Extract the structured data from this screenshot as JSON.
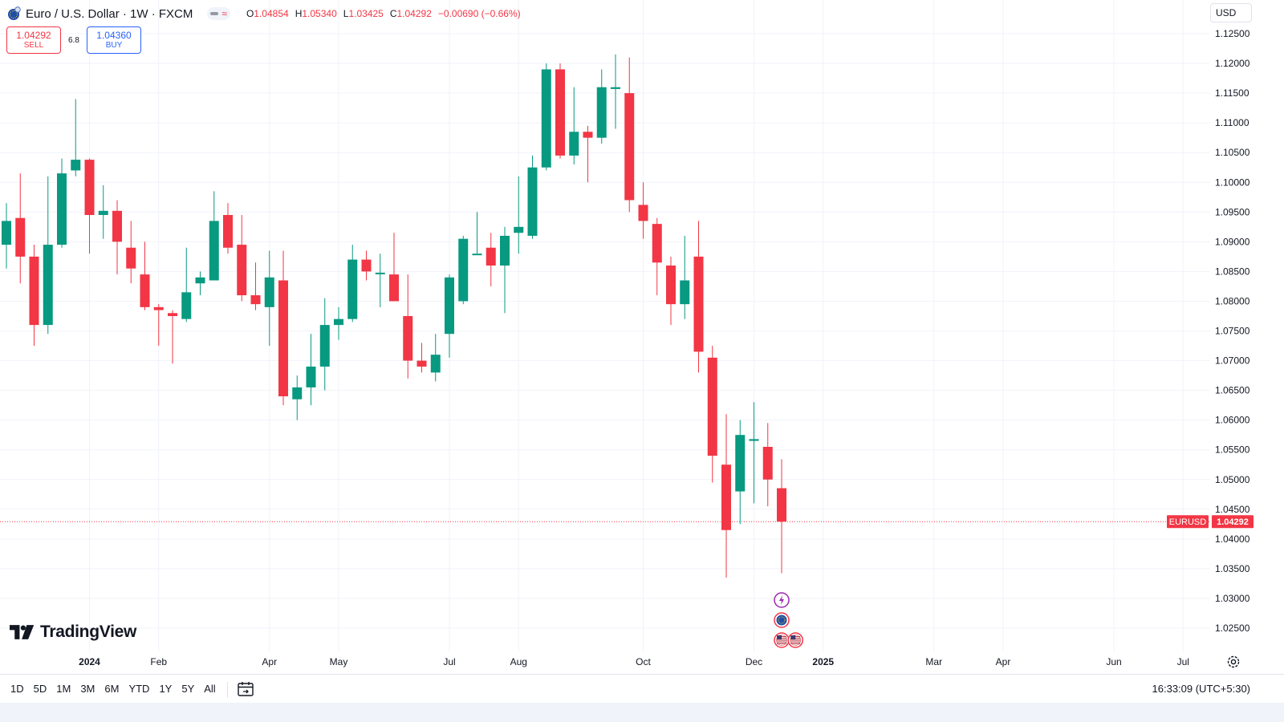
{
  "header": {
    "symbol_title": "Euro / U.S. Dollar · 1W · FXCM",
    "ohlc": {
      "o_label": "O",
      "o": "1.04854",
      "h_label": "H",
      "h": "1.05340",
      "l_label": "L",
      "l": "1.03425",
      "c_label": "C",
      "c": "1.04292",
      "change": "−0.00690 (−0.66%)"
    },
    "pill_symbol": "≈"
  },
  "trade": {
    "sell_price": "1.04292",
    "sell_label": "SELL",
    "buy_price": "1.04360",
    "buy_label": "BUY",
    "spread": "6.8"
  },
  "currency": "USD",
  "logo_text": "TradingView",
  "timeframes": [
    "1D",
    "5D",
    "1M",
    "3M",
    "6M",
    "YTD",
    "1Y",
    "5Y",
    "All"
  ],
  "clock": "16:33:09 (UTC+5:30)",
  "colors": {
    "up": "#089981",
    "down": "#f23645",
    "grid": "#f0f3fa",
    "text": "#131722",
    "price_line": "#f23645"
  },
  "chart_data": {
    "type": "candlestick",
    "symbol_label": "EURUSD",
    "last_price": "1.04292",
    "y_range": [
      1.0175,
      1.1275
    ],
    "y_ticks": [
      "1.02500",
      "1.03000",
      "1.03500",
      "1.04000",
      "1.04500",
      "1.05000",
      "1.05500",
      "1.06000",
      "1.06500",
      "1.07000",
      "1.07500",
      "1.08000",
      "1.08500",
      "1.09000",
      "1.09500",
      "1.10000",
      "1.10500",
      "1.11000",
      "1.11500",
      "1.12000",
      "1.12500"
    ],
    "x_labels": [
      {
        "label": "2024",
        "week": 6,
        "bold": true
      },
      {
        "label": "Feb",
        "week": 11
      },
      {
        "label": "Apr",
        "week": 19
      },
      {
        "label": "May",
        "week": 24
      },
      {
        "label": "Jul",
        "week": 32
      },
      {
        "label": "Aug",
        "week": 37
      },
      {
        "label": "Oct",
        "week": 46
      },
      {
        "label": "Dec",
        "week": 54
      },
      {
        "label": "2025",
        "week": 59,
        "bold": true
      },
      {
        "label": "Mar",
        "week": 67
      },
      {
        "label": "Apr",
        "week": 72
      },
      {
        "label": "Jun",
        "week": 80
      },
      {
        "label": "Jul",
        "week": 85
      }
    ],
    "candles": [
      {
        "o": 1.0895,
        "h": 1.0965,
        "l": 1.0855,
        "c": 1.0935
      },
      {
        "o": 1.094,
        "h": 1.1015,
        "l": 1.083,
        "c": 1.0875
      },
      {
        "o": 1.0875,
        "h": 1.0895,
        "l": 1.0725,
        "c": 1.076
      },
      {
        "o": 1.076,
        "h": 1.101,
        "l": 1.0745,
        "c": 1.0895
      },
      {
        "o": 1.0895,
        "h": 1.104,
        "l": 1.089,
        "c": 1.1015
      },
      {
        "o": 1.102,
        "h": 1.114,
        "l": 1.101,
        "c": 1.1038
      },
      {
        "o": 1.1038,
        "h": 1.104,
        "l": 1.088,
        "c": 1.0945
      },
      {
        "o": 1.0945,
        "h": 1.0995,
        "l": 1.0905,
        "c": 1.0952
      },
      {
        "o": 1.0952,
        "h": 1.097,
        "l": 1.0845,
        "c": 1.09
      },
      {
        "o": 1.089,
        "h": 1.0935,
        "l": 1.083,
        "c": 1.0855
      },
      {
        "o": 1.0845,
        "h": 1.09,
        "l": 1.0785,
        "c": 1.079
      },
      {
        "o": 1.079,
        "h": 1.0795,
        "l": 1.0725,
        "c": 1.0785
      },
      {
        "o": 1.078,
        "h": 1.0785,
        "l": 1.0695,
        "c": 1.0775
      },
      {
        "o": 1.077,
        "h": 1.089,
        "l": 1.0765,
        "c": 1.0815
      },
      {
        "o": 1.083,
        "h": 1.085,
        "l": 1.081,
        "c": 1.084
      },
      {
        "o": 1.0835,
        "h": 1.0985,
        "l": 1.0835,
        "c": 1.0935
      },
      {
        "o": 1.0945,
        "h": 1.0965,
        "l": 1.088,
        "c": 1.089
      },
      {
        "o": 1.0895,
        "h": 1.0945,
        "l": 1.08,
        "c": 1.081
      },
      {
        "o": 1.081,
        "h": 1.0865,
        "l": 1.0785,
        "c": 1.0795
      },
      {
        "o": 1.079,
        "h": 1.0885,
        "l": 1.0725,
        "c": 1.084
      },
      {
        "o": 1.0835,
        "h": 1.0885,
        "l": 1.0625,
        "c": 1.064
      },
      {
        "o": 1.0635,
        "h": 1.0675,
        "l": 1.06,
        "c": 1.0655
      },
      {
        "o": 1.0655,
        "h": 1.0745,
        "l": 1.0625,
        "c": 1.069
      },
      {
        "o": 1.069,
        "h": 1.0805,
        "l": 1.065,
        "c": 1.076
      },
      {
        "o": 1.076,
        "h": 1.079,
        "l": 1.0735,
        "c": 1.077
      },
      {
        "o": 1.077,
        "h": 1.0895,
        "l": 1.0765,
        "c": 1.087
      },
      {
        "o": 1.087,
        "h": 1.0885,
        "l": 1.0835,
        "c": 1.085
      },
      {
        "o": 1.0847,
        "h": 1.088,
        "l": 1.079,
        "c": 1.0848
      },
      {
        "o": 1.0845,
        "h": 1.0915,
        "l": 1.08,
        "c": 1.08
      },
      {
        "o": 1.0775,
        "h": 1.0845,
        "l": 1.067,
        "c": 1.07
      },
      {
        "o": 1.07,
        "h": 1.073,
        "l": 1.068,
        "c": 1.069
      },
      {
        "o": 1.068,
        "h": 1.0745,
        "l": 1.0665,
        "c": 1.071
      },
      {
        "o": 1.0745,
        "h": 1.0845,
        "l": 1.0705,
        "c": 1.084
      },
      {
        "o": 1.08,
        "h": 1.091,
        "l": 1.0795,
        "c": 1.0905
      },
      {
        "o": 1.088,
        "h": 1.095,
        "l": 1.088,
        "c": 1.088
      },
      {
        "o": 1.089,
        "h": 1.0915,
        "l": 1.0825,
        "c": 1.086
      },
      {
        "o": 1.086,
        "h": 1.0925,
        "l": 1.078,
        "c": 1.091
      },
      {
        "o": 1.0915,
        "h": 1.101,
        "l": 1.088,
        "c": 1.0925
      },
      {
        "o": 1.091,
        "h": 1.1045,
        "l": 1.0905,
        "c": 1.1025
      },
      {
        "o": 1.1025,
        "h": 1.12,
        "l": 1.102,
        "c": 1.119
      },
      {
        "o": 1.119,
        "h": 1.12,
        "l": 1.104,
        "c": 1.1045
      },
      {
        "o": 1.1045,
        "h": 1.116,
        "l": 1.103,
        "c": 1.1085
      },
      {
        "o": 1.1085,
        "h": 1.1095,
        "l": 1.1,
        "c": 1.1075
      },
      {
        "o": 1.1075,
        "h": 1.119,
        "l": 1.1065,
        "c": 1.116
      },
      {
        "o": 1.1157,
        "h": 1.1215,
        "l": 1.109,
        "c": 1.116
      },
      {
        "o": 1.115,
        "h": 1.121,
        "l": 1.095,
        "c": 1.097
      },
      {
        "o": 1.0962,
        "h": 1.1,
        "l": 1.0905,
        "c": 1.0935
      },
      {
        "o": 1.093,
        "h": 1.094,
        "l": 1.081,
        "c": 1.0865
      },
      {
        "o": 1.086,
        "h": 1.0875,
        "l": 1.076,
        "c": 1.0795
      },
      {
        "o": 1.0795,
        "h": 1.091,
        "l": 1.077,
        "c": 1.0835
      },
      {
        "o": 1.0875,
        "h": 1.0935,
        "l": 1.068,
        "c": 1.0715
      },
      {
        "o": 1.0705,
        "h": 1.0725,
        "l": 1.0495,
        "c": 1.054
      },
      {
        "o": 1.0525,
        "h": 1.061,
        "l": 1.0335,
        "c": 1.0415
      },
      {
        "o": 1.048,
        "h": 1.06,
        "l": 1.0425,
        "c": 1.0575
      },
      {
        "o": 1.0565,
        "h": 1.063,
        "l": 1.046,
        "c": 1.0568
      },
      {
        "o": 1.0555,
        "h": 1.0595,
        "l": 1.0455,
        "c": 1.05
      },
      {
        "o": 1.04854,
        "h": 1.0534,
        "l": 1.03425,
        "c": 1.04292
      }
    ],
    "events": [
      {
        "week": 56,
        "row": 0,
        "kind": "lightning-event-icon"
      },
      {
        "week": 56,
        "row": 1,
        "kind": "eu-event-icon"
      },
      {
        "week": 56,
        "row": 2,
        "kind": "us-event-icon"
      },
      {
        "week": 57,
        "row": 2,
        "kind": "us-event-icon"
      }
    ]
  }
}
